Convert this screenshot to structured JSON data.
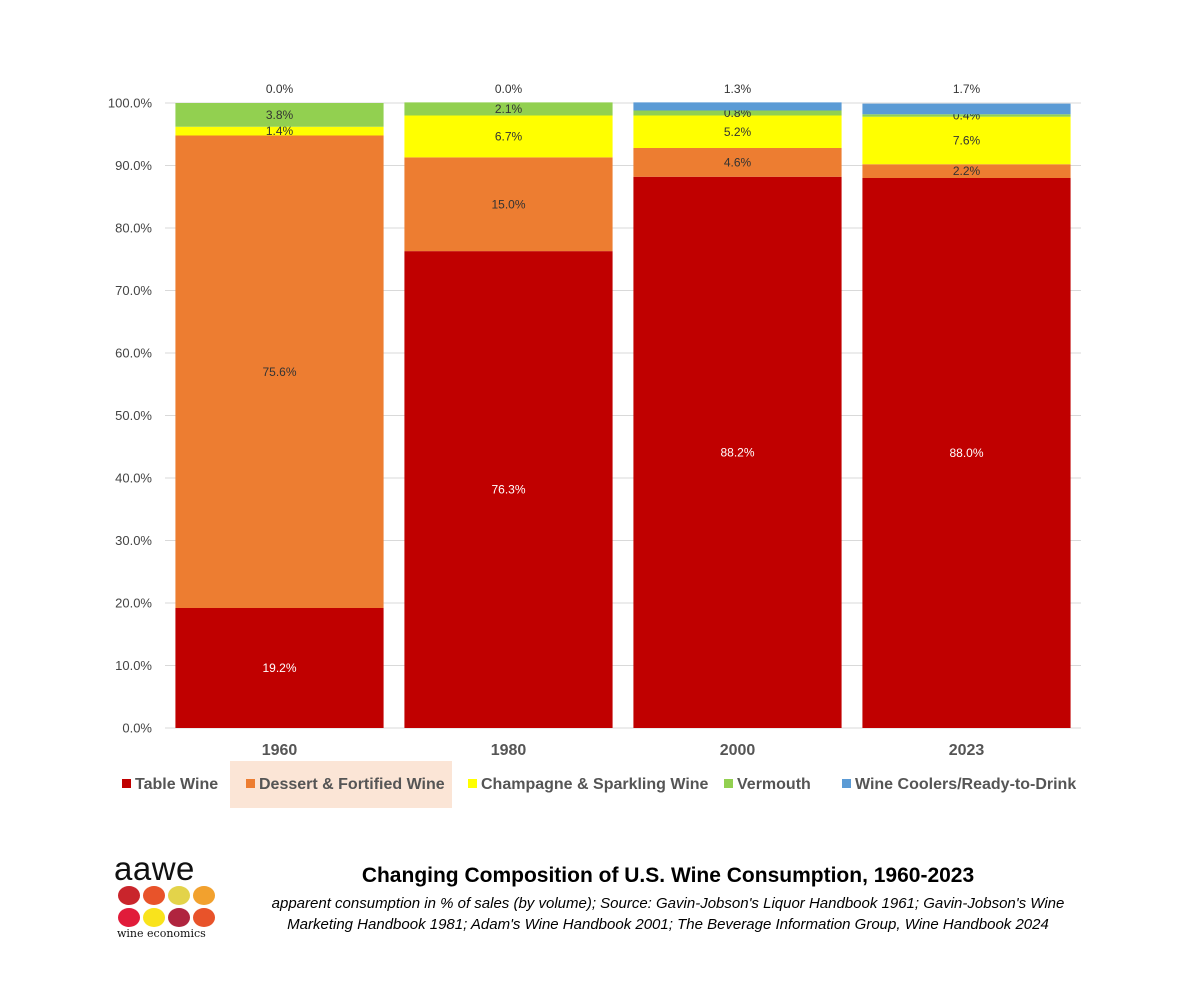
{
  "chart_data": {
    "type": "bar",
    "stacked": true,
    "categories": [
      "1960",
      "1980",
      "2000",
      "2023"
    ],
    "series": [
      {
        "name": "Table Wine",
        "color": "#c00000",
        "values": [
          19.2,
          76.3,
          88.2,
          88.0
        ],
        "labels": [
          "19.2%",
          "76.3%",
          "88.2%",
          "88.0%"
        ],
        "label_color": "#ffffff"
      },
      {
        "name": "Dessert & Fortified Wine",
        "color": "#ed7d31",
        "values": [
          75.6,
          15.0,
          4.6,
          2.2
        ],
        "labels": [
          "75.6%",
          "15.0%",
          "4.6%",
          "2.2%"
        ],
        "label_color": "#333333"
      },
      {
        "name": "Champagne & Sparkling Wine",
        "color": "#ffff00",
        "values": [
          1.4,
          6.7,
          5.2,
          7.6
        ],
        "labels": [
          "1.4%",
          "6.7%",
          "5.2%",
          "7.6%"
        ],
        "label_color": "#333333"
      },
      {
        "name": "Vermouth",
        "color": "#92d050",
        "values": [
          3.8,
          2.1,
          0.8,
          0.4
        ],
        "labels": [
          "3.8%",
          "2.1%",
          "0.8%",
          "0.4%"
        ],
        "label_color": "#333333"
      },
      {
        "name": "Wine Coolers/Ready-to-Drink",
        "color": "#5b9bd5",
        "values": [
          0.0,
          0.0,
          1.3,
          1.7
        ],
        "labels": [
          "0.0%",
          "0.0%",
          "1.3%",
          "1.7%"
        ],
        "label_color": "#333333"
      }
    ],
    "yticks": [
      "0.0%",
      "10.0%",
      "20.0%",
      "30.0%",
      "40.0%",
      "50.0%",
      "60.0%",
      "70.0%",
      "80.0%",
      "90.0%",
      "100.0%"
    ],
    "ylim": [
      0,
      100
    ],
    "grid": true,
    "legend_position": "bottom",
    "legend_highlight": "Dessert & Fortified Wine",
    "legend_highlight_color": "#fbe5d6",
    "title": "Changing Composition of U.S. Wine Consumption, 1960-2023",
    "subtitle_lines": [
      "apparent consumption in % of sales (by volume); Source: Gavin-Jobson's Liquor Handbook 1961; Gavin-Jobson's Wine",
      "Marketing Handbook 1981; Adam's Wine Handbook 2001; The Beverage Information Group, Wine Handbook 2024"
    ]
  },
  "logo": {
    "word": "aawe",
    "subtitle": "wine economics",
    "dot_colors": [
      "#c9252c",
      "#e8532a",
      "#e3d34a",
      "#f2a12e",
      "#e11b3a",
      "#f9e31c",
      "#b0243f",
      "#e8532a"
    ]
  }
}
